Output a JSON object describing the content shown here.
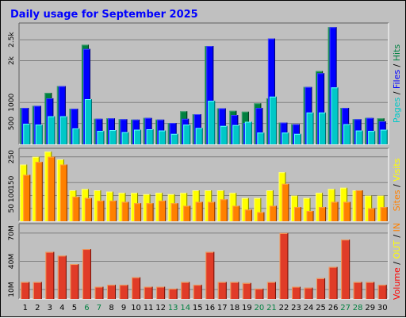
{
  "chart_data": {
    "type": "bar",
    "title": "Daily usage for September 2025",
    "title_color": "#0000ff",
    "days": [
      "1",
      "2",
      "3",
      "4",
      "5",
      "6",
      "7",
      "8",
      "9",
      "10",
      "11",
      "12",
      "13",
      "14",
      "15",
      "16",
      "17",
      "18",
      "19",
      "20",
      "21",
      "22",
      "23",
      "24",
      "25",
      "26",
      "27",
      "28",
      "29",
      "30"
    ],
    "weekend_days": [
      "6",
      "7",
      "13",
      "14",
      "20",
      "21",
      "27",
      "28"
    ],
    "weekday_color": "#000000",
    "weekend_color": "#008040",
    "panels": [
      {
        "name": "hits-files-pages",
        "ylim": [
          0,
          2900
        ],
        "ticks": [
          {
            "label": "2.5k",
            "value": 2500
          },
          {
            "label": "2k",
            "value": 2000
          },
          {
            "label": "1000",
            "value": 1000
          },
          {
            "label": "500",
            "value": 500
          }
        ],
        "legend": [
          {
            "text": "Pages",
            "color": "#00c8c8"
          },
          {
            "text": " / ",
            "color": "#000000"
          },
          {
            "text": "Files",
            "color": "#0000ff"
          },
          {
            "text": " / ",
            "color": "#000000"
          },
          {
            "text": "Hits",
            "color": "#008040"
          }
        ],
        "series": [
          {
            "name": "Hits",
            "color": "#008040",
            "values": [
              870,
              920,
              1230,
              1390,
              850,
              2380,
              610,
              620,
              600,
              590,
              630,
              590,
              510,
              790,
              720,
              2350,
              860,
              800,
              780,
              980,
              1100,
              520,
              480,
              1370,
              1750,
              2800,
              870,
              600,
              630,
              620
            ]
          },
          {
            "name": "Files",
            "color": "#0000ff",
            "values": [
              870,
              920,
              1100,
              1390,
              850,
              2280,
              610,
              620,
              600,
              590,
              630,
              590,
              510,
              610,
              720,
              2350,
              860,
              700,
              510,
              870,
              2530,
              520,
              480,
              1370,
              1700,
              2800,
              870,
              600,
              630,
              550
            ]
          },
          {
            "name": "Pages",
            "color": "#00c8c8",
            "values": [
              490,
              470,
              670,
              670,
              380,
              1080,
              320,
              340,
              290,
              350,
              360,
              330,
              250,
              470,
              390,
              1040,
              440,
              460,
              540,
              280,
              1140,
              280,
              250,
              760,
              760,
              1360,
              480,
              330,
              320,
              350
            ]
          }
        ]
      },
      {
        "name": "visits-sites",
        "ylim": [
          0,
          283
        ],
        "ticks": [
          {
            "label": "250",
            "value": 250
          },
          {
            "label": "150",
            "value": 150
          },
          {
            "label": "100",
            "value": 100
          },
          {
            "label": "50",
            "value": 50
          }
        ],
        "legend": [
          {
            "text": "Sites",
            "color": "#ff8000"
          },
          {
            "text": " / ",
            "color": "#000000"
          },
          {
            "text": "Visits",
            "color": "#ffff00"
          }
        ],
        "series": [
          {
            "name": "Visits",
            "color": "#ffff00",
            "values": [
              220,
              250,
              270,
              240,
              120,
              125,
              120,
              115,
              110,
              110,
              105,
              110,
              105,
              110,
              120,
              120,
              120,
              110,
              90,
              90,
              120,
              190,
              100,
              90,
              110,
              125,
              130,
              120,
              100,
              100
            ]
          },
          {
            "name": "Sites",
            "color": "#ff8000",
            "values": [
              180,
              230,
              250,
              220,
              95,
              90,
              80,
              80,
              75,
              70,
              70,
              80,
              70,
              60,
              75,
              75,
              85,
              60,
              45,
              35,
              60,
              145,
              55,
              40,
              55,
              75,
              75,
              120,
              50,
              55
            ]
          }
        ]
      },
      {
        "name": "volume",
        "ylim": [
          0,
          80
        ],
        "ticks": [
          {
            "label": "70M",
            "value": 70
          },
          {
            "label": "40M",
            "value": 40
          },
          {
            "label": "10M",
            "value": 10
          }
        ],
        "legend": [
          {
            "text": "Volume",
            "color": "#ff0000"
          },
          {
            "text": " / ",
            "color": "#000000"
          },
          {
            "text": "OUT",
            "color": "#ffff00"
          },
          {
            "text": " / ",
            "color": "#000000"
          },
          {
            "text": "IN",
            "color": "#ff8000"
          }
        ],
        "series": [
          {
            "name": "Volume",
            "color": "#e03c28",
            "values": [
              18,
              18,
              50,
              46,
              37,
              53,
              13,
              15,
              15,
              23,
              13,
              13,
              11,
              18,
              15,
              50,
              18,
              18,
              17,
              11,
              18,
              70,
              13,
              12,
              22,
              34,
              63,
              18,
              18,
              15
            ]
          }
        ]
      }
    ]
  }
}
